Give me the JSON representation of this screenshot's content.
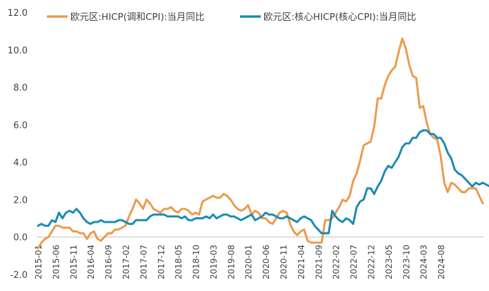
{
  "chart_data": {
    "type": "line",
    "title": "",
    "xlabel": "",
    "ylabel": "",
    "ylim": [
      -2.0,
      12.0
    ],
    "yticks": [
      "12.0",
      "10.0",
      "8.0",
      "6.0",
      "4.0",
      "2.0",
      "0.0",
      "-2.0"
    ],
    "xtick_labels": [
      "2015-01",
      "2015-06",
      "2015-11",
      "2016-04",
      "2016-09",
      "2017-02",
      "2017-07",
      "2017-12",
      "2018-05",
      "2018-10",
      "2019-03",
      "2019-08",
      "2020-01",
      "2020-06",
      "2020-11",
      "2021-04",
      "2021-09",
      "2022-02",
      "2022-07",
      "2022-12",
      "2023-05",
      "2023-10",
      "2024-03",
      "2024-08"
    ],
    "legend_position": "top",
    "grid": false,
    "series": [
      {
        "name": "欧元区:HICP(调和CPI):当月同比",
        "color": "#ED9A4A",
        "values": [
          -0.6,
          -0.3,
          -0.1,
          0.0,
          0.3,
          0.6,
          0.6,
          0.5,
          0.5,
          0.5,
          0.3,
          0.3,
          0.2,
          0.2,
          -0.1,
          0.2,
          0.3,
          -0.1,
          -0.2,
          0.0,
          0.2,
          0.2,
          0.4,
          0.4,
          0.5,
          0.6,
          1.1,
          1.5,
          2.0,
          1.8,
          1.5,
          2.0,
          1.8,
          1.5,
          1.4,
          1.3,
          1.5,
          1.5,
          1.6,
          1.4,
          1.3,
          1.5,
          1.5,
          1.4,
          1.2,
          1.3,
          1.2,
          1.9,
          2.0,
          2.1,
          2.2,
          2.1,
          2.1,
          2.3,
          2.2,
          2.0,
          1.7,
          1.5,
          1.4,
          1.5,
          1.7,
          1.2,
          1.4,
          1.3,
          1.0,
          1.0,
          0.8,
          0.7,
          1.0,
          1.3,
          1.4,
          1.3,
          0.7,
          0.3,
          0.1,
          0.3,
          0.4,
          -0.2,
          -0.3,
          -0.3,
          -0.3,
          -0.3,
          0.9,
          0.9,
          1.0,
          1.3,
          1.6,
          2.0,
          1.9,
          2.2,
          3.0,
          3.4,
          4.1,
          4.9,
          5.0,
          5.1,
          5.9,
          7.4,
          7.4,
          8.1,
          8.6,
          8.9,
          9.1,
          9.9,
          10.6,
          10.1,
          9.2,
          8.6,
          8.5,
          6.9,
          7.0,
          6.1,
          5.5,
          5.3,
          5.2,
          4.3,
          2.9,
          2.4,
          2.9,
          2.8,
          2.6,
          2.4,
          2.4,
          2.6,
          2.6,
          2.6,
          2.2,
          1.8
        ]
      },
      {
        "name": "欧元区:核心HICP(核心CPI):当月同比",
        "color": "#1A8AB4",
        "values": [
          0.6,
          0.7,
          0.6,
          0.6,
          0.9,
          0.8,
          1.3,
          1.0,
          1.3,
          1.4,
          1.3,
          1.5,
          1.3,
          1.0,
          0.8,
          0.7,
          0.8,
          0.8,
          0.9,
          0.8,
          0.8,
          0.8,
          0.8,
          0.9,
          0.9,
          0.8,
          0.7,
          0.7,
          0.9,
          0.9,
          0.9,
          0.9,
          1.1,
          1.2,
          1.2,
          1.2,
          1.2,
          1.1,
          1.1,
          1.1,
          1.1,
          1.0,
          1.1,
          0.9,
          0.9,
          1.0,
          1.0,
          1.0,
          1.1,
          1.0,
          1.2,
          1.0,
          1.1,
          1.2,
          1.2,
          1.1,
          1.1,
          1.0,
          0.9,
          1.0,
          1.1,
          1.2,
          0.9,
          1.0,
          1.1,
          1.3,
          1.2,
          1.2,
          1.1,
          1.0,
          1.0,
          1.1,
          1.0,
          0.9,
          0.8,
          1.0,
          1.1,
          1.0,
          0.9,
          0.6,
          0.4,
          0.2,
          0.2,
          0.2,
          1.4,
          1.1,
          0.9,
          0.8,
          1.0,
          0.9,
          0.7,
          1.6,
          1.9,
          2.0,
          2.6,
          2.6,
          2.3,
          2.7,
          3.0,
          3.5,
          3.8,
          3.7,
          4.0,
          4.3,
          4.8,
          5.0,
          5.0,
          5.3,
          5.3,
          5.6,
          5.7,
          5.7,
          5.5,
          5.5,
          5.3,
          5.3,
          5.0,
          4.5,
          4.2,
          3.6,
          3.4,
          3.3,
          3.1,
          2.9,
          2.7,
          2.9,
          2.8,
          2.9,
          2.8,
          2.7
        ]
      }
    ]
  }
}
